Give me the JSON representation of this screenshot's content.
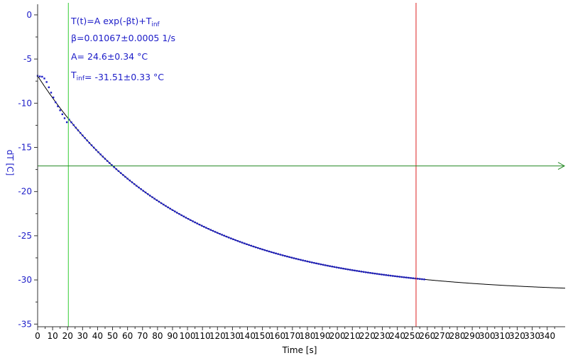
{
  "chart_data": {
    "type": "scatter",
    "xlabel": "Time [s]",
    "ylabel": "dT [C]",
    "xlim": [
      0,
      352
    ],
    "ylim": [
      -35.3,
      1.2
    ],
    "xticks": [
      0,
      10,
      20,
      30,
      40,
      50,
      60,
      70,
      80,
      90,
      100,
      110,
      120,
      130,
      140,
      150,
      160,
      170,
      180,
      190,
      200,
      210,
      220,
      230,
      240,
      250,
      260,
      270,
      280,
      290,
      300,
      310,
      320,
      330,
      340
    ],
    "yticks": [
      0,
      -5,
      -10,
      -15,
      -20,
      -25,
      -30,
      -35
    ],
    "grid": false,
    "colors": {
      "data": "#1c1cc8",
      "fit": "#000000",
      "left_marker": "#33cc33",
      "right_marker": "#dd2222",
      "h_arrow": "#228822",
      "axis": "#333333"
    },
    "annotations": [
      {
        "parts": [
          {
            "t": "T(t)=A exp(-βt)+T"
          },
          {
            "t": "inf",
            "sub": true
          }
        ]
      },
      {
        "parts": [
          {
            "t": "β=0.01067±0.0005 1/s"
          }
        ]
      },
      {
        "parts": [
          {
            "t": "A= 24.6±0.34 °C"
          }
        ]
      },
      {
        "parts": [
          {
            "t": "T"
          },
          {
            "t": "inf",
            "sub": true
          },
          {
            "t": "= -31.51±0.33 °C"
          }
        ]
      }
    ],
    "vertical_markers": [
      {
        "x": 20.5,
        "color": "left_marker"
      },
      {
        "x": 252.5,
        "color": "right_marker"
      }
    ],
    "horizontal_marker": {
      "y": -17.1,
      "color": "h_arrow"
    },
    "series": [
      {
        "kind": "points",
        "x_start": 0,
        "x_end": 258,
        "x_step": 1.5,
        "early": [
          [
            0,
            -6.9
          ],
          [
            1,
            -7.0
          ],
          [
            2,
            -6.95
          ],
          [
            3,
            -7.0
          ],
          [
            4,
            -7.1
          ],
          [
            5,
            -7.3
          ],
          [
            6,
            -7.6
          ],
          [
            7,
            -8.0
          ],
          [
            8,
            -8.4
          ],
          [
            9,
            -8.8
          ],
          [
            10,
            -9.2
          ],
          [
            11,
            -9.5
          ],
          [
            12,
            -9.9
          ],
          [
            13,
            -10.2
          ],
          [
            14,
            -10.5
          ],
          [
            15,
            -10.8
          ],
          [
            16,
            -11.1
          ],
          [
            17,
            -11.4
          ],
          [
            18,
            -11.7
          ],
          [
            19,
            -12.0
          ],
          [
            20,
            -12.3
          ]
        ]
      },
      {
        "kind": "fit",
        "A": 24.6,
        "beta": 0.01067,
        "Tinf": -31.51,
        "x_start": 0,
        "x_end": 352
      }
    ]
  }
}
